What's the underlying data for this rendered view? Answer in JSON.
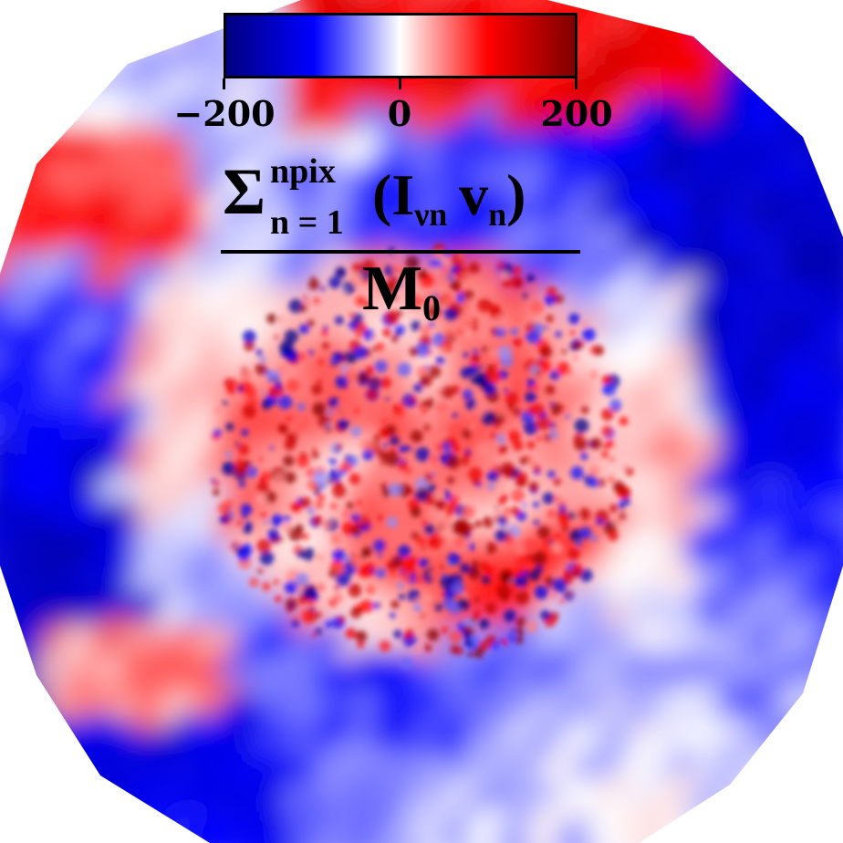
{
  "chart_data": {
    "type": "heatmap",
    "title": "",
    "colorbar": {
      "min": -200,
      "max": 200,
      "ticks": [
        -200,
        0,
        200
      ],
      "tick_labels": [
        "−200",
        "0",
        "200"
      ],
      "colormap": "seismic",
      "colors": [
        "#00007f",
        "#0000ff",
        "#ffffff",
        "#ff0000",
        "#800000"
      ]
    },
    "annotation": {
      "sigma": "Σ",
      "sum_upper": "npix",
      "sum_lower": "n = 1",
      "numerator_term": "(I",
      "numerator_sub1": "νn",
      "numerator_v": "v",
      "numerator_sub2": "n",
      "numerator_close": ")",
      "denominator": "M",
      "denominator_sub": "0"
    },
    "map_description_values": {
      "center_region_sign": "positive",
      "outer_ring_sign": "negative",
      "value_range": [
        -200,
        200
      ]
    }
  }
}
